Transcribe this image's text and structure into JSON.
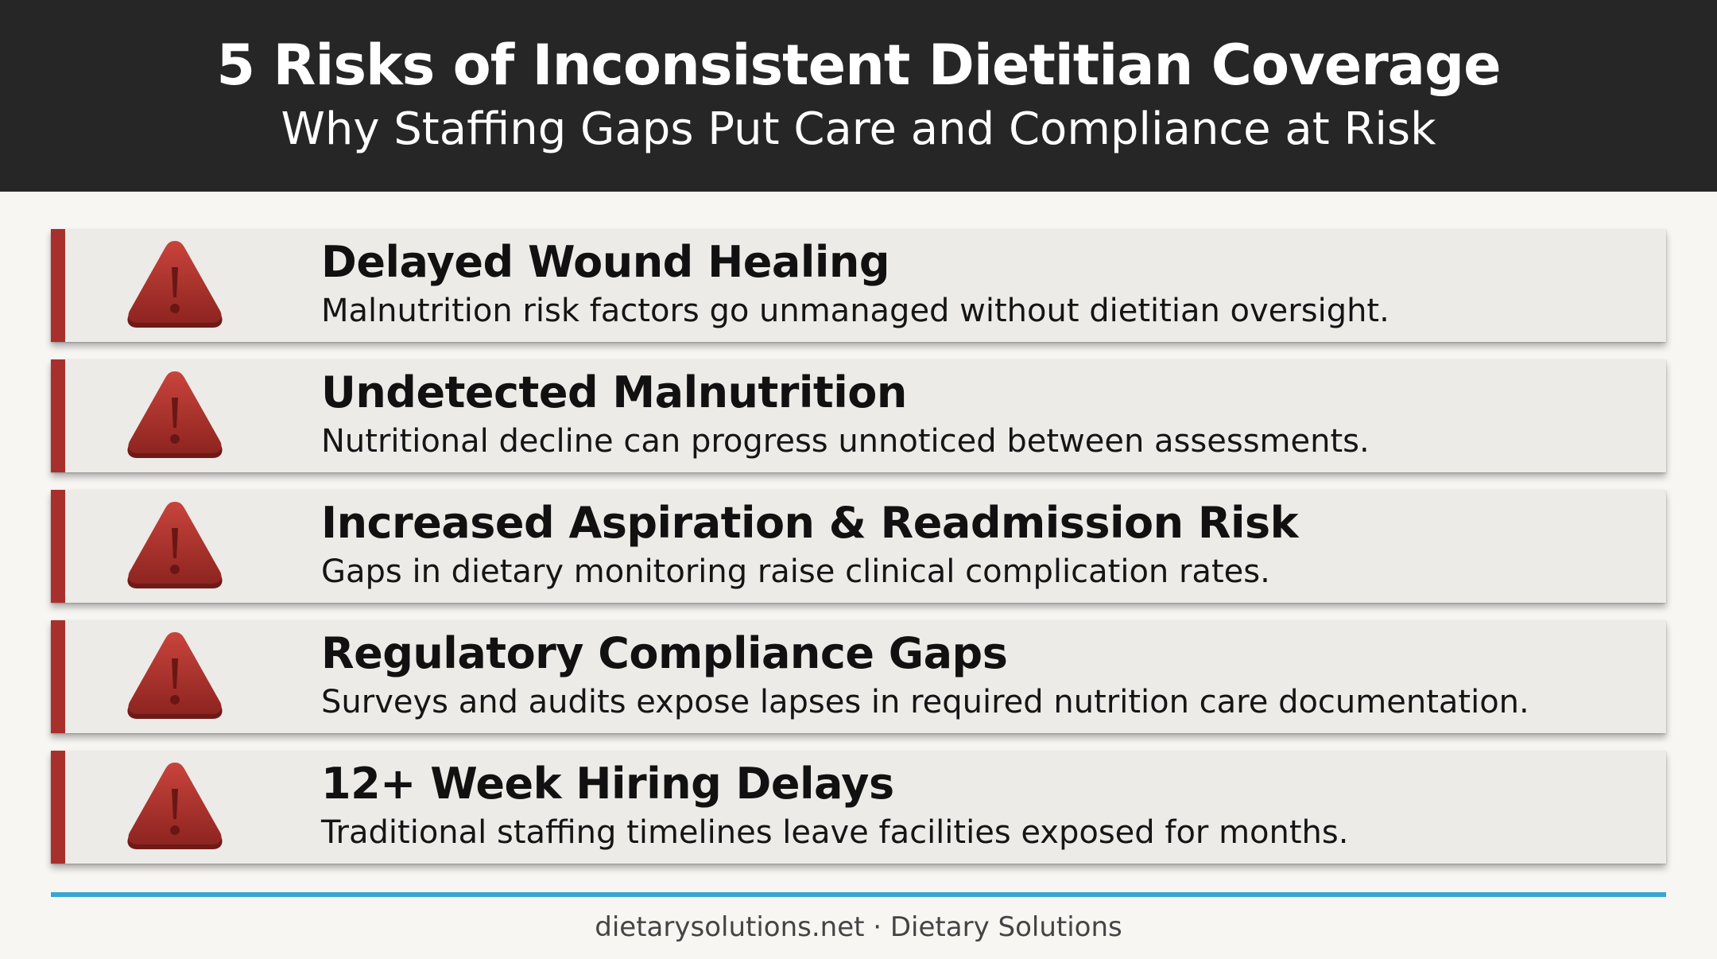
{
  "header": {
    "title": "5 Risks of Inconsistent Dietitian Coverage",
    "subtitle": "Why Staffing Gaps Put Care and Compliance at Risk"
  },
  "risks": [
    {
      "icon": "warning-triangle-icon",
      "title": "Delayed Wound Healing",
      "description": "Malnutrition risk factors go unmanaged without dietitian oversight."
    },
    {
      "icon": "warning-triangle-icon",
      "title": "Undetected Malnutrition",
      "description": "Nutritional decline can progress unnoticed between assessments."
    },
    {
      "icon": "warning-triangle-icon",
      "title": "Increased Aspiration & Readmission Risk",
      "description": "Gaps in dietary monitoring raise clinical complication rates."
    },
    {
      "icon": "warning-triangle-icon",
      "title": "Regulatory Compliance Gaps",
      "description": "Surveys and audits expose lapses in required nutrition care documentation."
    },
    {
      "icon": "warning-triangle-icon",
      "title": "12+ Week Hiring Delays",
      "description": "Traditional staffing timelines leave facilities exposed for months."
    }
  ],
  "footer": {
    "text": "dietarysolutions.net · Dietary Solutions"
  },
  "colors": {
    "header_background": "#262626",
    "accent_red": "#a8302c",
    "card_background": "#ecebe8",
    "divider_blue": "#3aa6d0"
  }
}
